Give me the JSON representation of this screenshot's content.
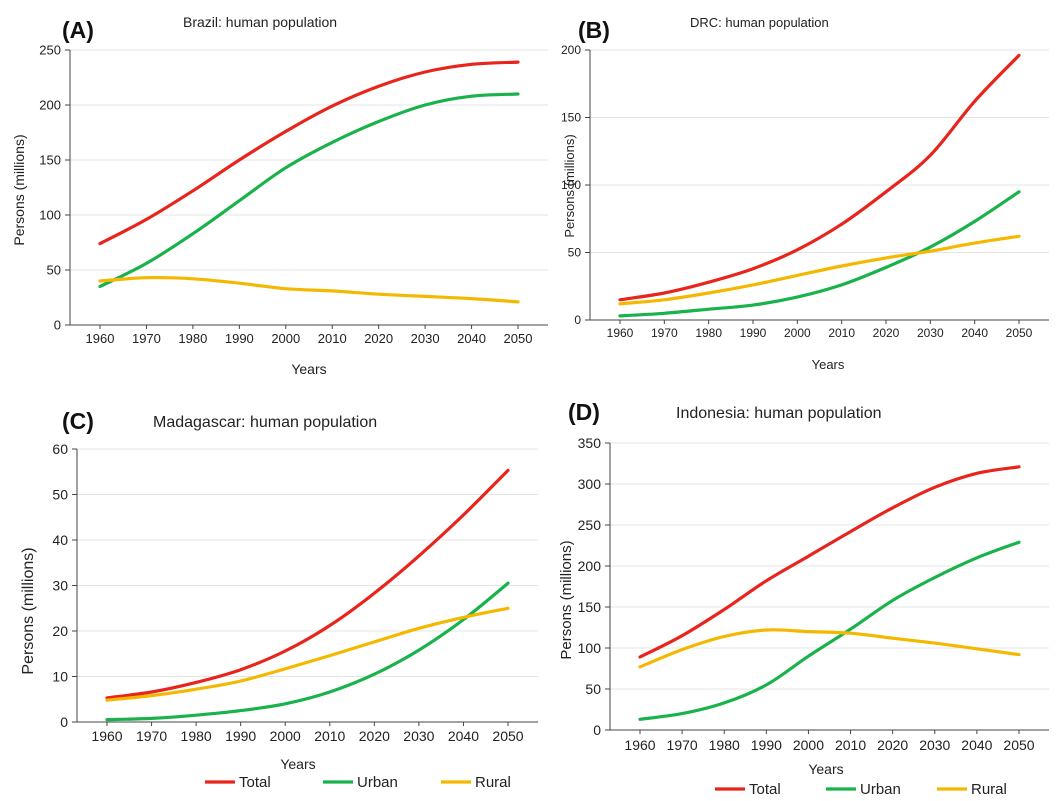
{
  "chart_data": [
    {
      "type": "line",
      "panel_label": "(A)",
      "title": "Brazil: human population",
      "xlabel": "Years",
      "ylabel": "Persons (millions)",
      "x": [
        1960,
        1970,
        1980,
        1990,
        2000,
        2010,
        2020,
        2030,
        2040,
        2050
      ],
      "xticks": [
        "1960",
        "1970",
        "1980",
        "1990",
        "2000",
        "2010",
        "2020",
        "2030",
        "2040",
        "2050"
      ],
      "ylim": [
        0,
        250
      ],
      "yticks": [
        "0",
        "50",
        "100",
        "150",
        "200",
        "250"
      ],
      "grid": true,
      "series": [
        {
          "name": "Total",
          "color": "#e8251c",
          "values": [
            74,
            96,
            122,
            150,
            176,
            199,
            217,
            230,
            237,
            239
          ]
        },
        {
          "name": "Urban",
          "color": "#19b24b",
          "values": [
            35,
            56,
            83,
            113,
            143,
            166,
            185,
            200,
            208,
            210
          ]
        },
        {
          "name": "Rural",
          "color": "#f5b800",
          "values": [
            40,
            43,
            42,
            38,
            33,
            31,
            28,
            26,
            24,
            21
          ]
        }
      ]
    },
    {
      "type": "line",
      "panel_label": "(B)",
      "title": "DRC: human population",
      "xlabel": "Years",
      "ylabel": "Persons (millions)",
      "x": [
        1960,
        1970,
        1980,
        1990,
        2000,
        2010,
        2020,
        2030,
        2040,
        2050
      ],
      "xticks": [
        "1960",
        "1970",
        "1980",
        "1990",
        "2000",
        "2010",
        "2020",
        "2030",
        "2040",
        "2050"
      ],
      "ylim": [
        0,
        200
      ],
      "yticks": [
        "0",
        "50",
        "100",
        "150",
        "200"
      ],
      "grid": true,
      "series": [
        {
          "name": "Total",
          "color": "#e8251c",
          "values": [
            15,
            20,
            28,
            38,
            52,
            71,
            95,
            122,
            162,
            196
          ]
        },
        {
          "name": "Urban",
          "color": "#19b24b",
          "values": [
            3,
            5,
            8,
            11,
            17,
            26,
            39,
            54,
            73,
            95
          ]
        },
        {
          "name": "Rural",
          "color": "#f5b800",
          "values": [
            12,
            15,
            20,
            26,
            33,
            40,
            46,
            51,
            57,
            62
          ]
        }
      ]
    },
    {
      "type": "line",
      "panel_label": "(C)",
      "title": "Madagascar: human population",
      "xlabel": "Years",
      "ylabel": "Persons (millions)",
      "x": [
        1960,
        1970,
        1980,
        1990,
        2000,
        2010,
        2020,
        2030,
        2040,
        2050
      ],
      "xticks": [
        "1960",
        "1970",
        "1980",
        "1990",
        "2000",
        "2010",
        "2020",
        "2030",
        "2040",
        "2050"
      ],
      "ylim": [
        0,
        60
      ],
      "yticks": [
        "0",
        "10",
        "20",
        "30",
        "40",
        "50",
        "60"
      ],
      "grid": true,
      "series": [
        {
          "name": "Total",
          "color": "#e8251c",
          "values": [
            5.3,
            6.6,
            8.7,
            11.5,
            15.6,
            21.2,
            28.3,
            36.5,
            45.5,
            55.3
          ]
        },
        {
          "name": "Urban",
          "color": "#19b24b",
          "values": [
            0.5,
            0.8,
            1.5,
            2.5,
            4.0,
            6.6,
            10.5,
            15.8,
            22.5,
            30.5
          ]
        },
        {
          "name": "Rural",
          "color": "#f5b800",
          "values": [
            4.8,
            5.8,
            7.2,
            9.0,
            11.7,
            14.6,
            17.6,
            20.6,
            23.0,
            25.0
          ]
        }
      ]
    },
    {
      "type": "line",
      "panel_label": "(D)",
      "title": "Indonesia: human population",
      "xlabel": "Years",
      "ylabel": "Persons (millions)",
      "x": [
        1960,
        1970,
        1980,
        1990,
        2000,
        2010,
        2020,
        2030,
        2040,
        2050
      ],
      "xticks": [
        "1960",
        "1970",
        "1980",
        "1990",
        "2000",
        "2010",
        "2020",
        "2030",
        "2040",
        "2050"
      ],
      "ylim": [
        0,
        350
      ],
      "yticks": [
        "0",
        "50",
        "100",
        "150",
        "200",
        "250",
        "300",
        "350"
      ],
      "grid": true,
      "series": [
        {
          "name": "Total",
          "color": "#e8251c",
          "values": [
            89,
            115,
            147,
            182,
            212,
            242,
            271,
            296,
            313,
            321
          ]
        },
        {
          "name": "Urban",
          "color": "#19b24b",
          "values": [
            13,
            20,
            33,
            55,
            90,
            123,
            158,
            186,
            210,
            229
          ]
        },
        {
          "name": "Rural",
          "color": "#f5b800",
          "values": [
            77,
            98,
            114,
            122,
            120,
            118,
            112,
            106,
            99,
            92
          ]
        }
      ]
    }
  ],
  "legend": [
    {
      "label": "Total",
      "color": "#e8251c"
    },
    {
      "label": "Urban",
      "color": "#19b24b"
    },
    {
      "label": "Rural",
      "color": "#f5b800"
    }
  ]
}
